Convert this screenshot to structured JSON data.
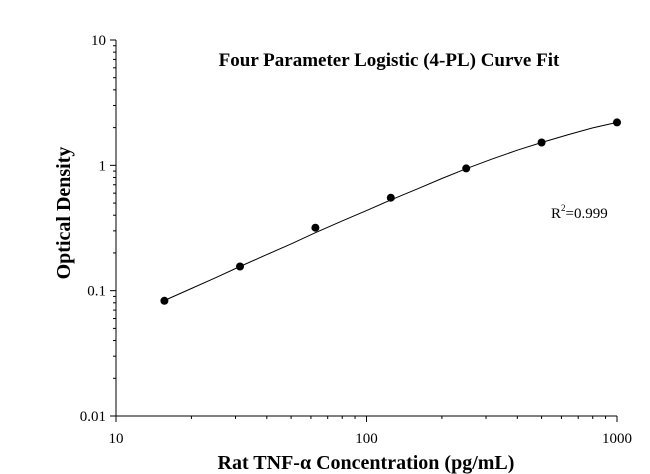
{
  "chart_data": {
    "type": "scatter",
    "title": "Four Parameter Logistic (4-PL) Curve Fit",
    "xlabel": "Rat TNF-α Concentration (pg/mL)",
    "ylabel": "Optical Density",
    "x_scale": "log",
    "y_scale": "log",
    "xlim": [
      10,
      1000
    ],
    "ylim": [
      0.01,
      10
    ],
    "x_ticks": [
      10,
      100,
      1000
    ],
    "y_ticks": [
      0.01,
      0.1,
      1,
      10
    ],
    "x_tick_labels": [
      "10",
      "100",
      "1000"
    ],
    "y_tick_labels": [
      "0.01",
      "0.1",
      "1",
      "10"
    ],
    "grid": false,
    "series": [
      {
        "x": [
          15.6,
          31.25,
          62.5,
          125,
          250,
          500,
          1000
        ],
        "y": [
          0.083,
          0.156,
          0.318,
          0.552,
          0.945,
          1.52,
          2.2
        ]
      }
    ],
    "fit_curve": {
      "type": "4-PL",
      "x": [
        15.6,
        20,
        25,
        31.25,
        40,
        50,
        62.5,
        80,
        100,
        125,
        160,
        200,
        250,
        320,
        400,
        500,
        640,
        800,
        1000
      ],
      "y": [
        0.0835,
        0.104,
        0.127,
        0.156,
        0.194,
        0.236,
        0.29,
        0.36,
        0.435,
        0.53,
        0.65,
        0.785,
        0.94,
        1.13,
        1.32,
        1.52,
        1.76,
        1.99,
        2.2
      ]
    },
    "annotation": {
      "r2_label": "R",
      "r2_sup": "2",
      "r2_value": "=0.999"
    }
  }
}
